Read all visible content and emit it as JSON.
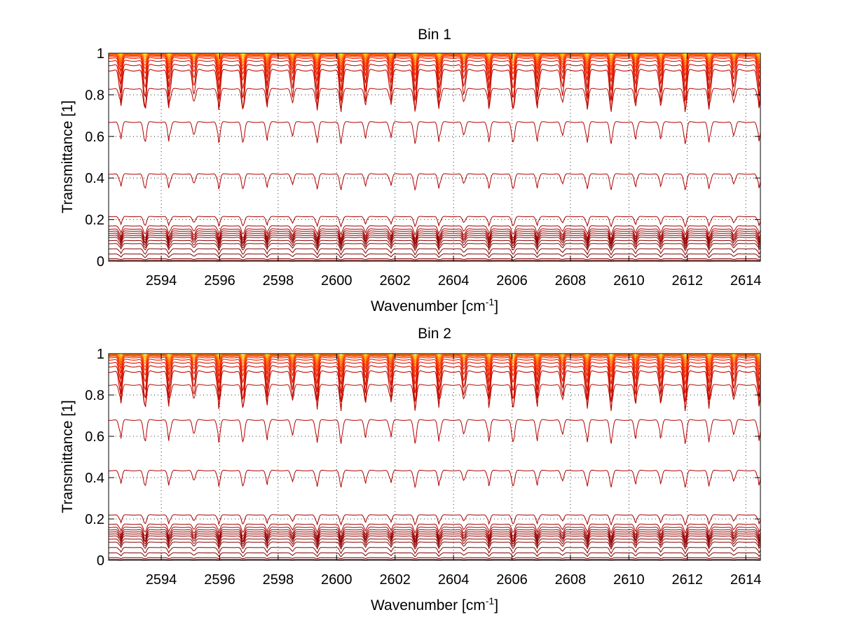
{
  "chart_data": [
    {
      "type": "line",
      "title": "Bin 1",
      "xlabel_main": "Wavenumber [cm",
      "xlabel_sup": "-1",
      "xlabel_end": "]",
      "ylabel": "Transmittance [1]",
      "xlim": [
        2592.2,
        2614.5
      ],
      "ylim": [
        0,
        1
      ],
      "xticks": [
        2594,
        2596,
        2598,
        2600,
        2602,
        2604,
        2606,
        2608,
        2610,
        2612,
        2614
      ],
      "yticks": [
        0,
        0.2,
        0.4,
        0.6,
        0.8,
        1
      ],
      "grid": true,
      "line_spacing_cm-1": 0.84,
      "series": [
        {
          "base": 1.0,
          "depth": 0.008,
          "color": "#ffe000"
        },
        {
          "base": 1.0,
          "depth": 0.012,
          "color": "#ffcc00"
        },
        {
          "base": 1.0,
          "depth": 0.018,
          "color": "#ffb400"
        },
        {
          "base": 0.998,
          "depth": 0.025,
          "color": "#ff9c00"
        },
        {
          "base": 0.997,
          "depth": 0.035,
          "color": "#ff8400"
        },
        {
          "base": 0.995,
          "depth": 0.045,
          "color": "#ff6c00"
        },
        {
          "base": 0.993,
          "depth": 0.06,
          "color": "#ff5400"
        },
        {
          "base": 0.99,
          "depth": 0.075,
          "color": "#ff3c00"
        },
        {
          "base": 0.985,
          "depth": 0.095,
          "color": "#f52a00"
        },
        {
          "base": 0.978,
          "depth": 0.12,
          "color": "#e82000"
        },
        {
          "base": 0.965,
          "depth": 0.15,
          "color": "#dc1800"
        },
        {
          "base": 0.945,
          "depth": 0.18,
          "color": "#d01000"
        },
        {
          "base": 0.92,
          "depth": 0.21,
          "color": "#c40c00"
        },
        {
          "base": 0.83,
          "depth": 0.11,
          "color": "#b80800"
        },
        {
          "base": 0.67,
          "depth": 0.11,
          "color": "#b40000"
        },
        {
          "base": 0.42,
          "depth": 0.08,
          "color": "#b00000"
        },
        {
          "base": 0.215,
          "depth": 0.05,
          "color": "#a80000"
        },
        {
          "base": 0.17,
          "depth": 0.045,
          "color": "#a40000"
        },
        {
          "base": 0.155,
          "depth": 0.05,
          "color": "#a00000"
        },
        {
          "base": 0.145,
          "depth": 0.05,
          "color": "#9c0000"
        },
        {
          "base": 0.135,
          "depth": 0.05,
          "color": "#980000"
        },
        {
          "base": 0.125,
          "depth": 0.045,
          "color": "#940000"
        },
        {
          "base": 0.115,
          "depth": 0.045,
          "color": "#900000"
        },
        {
          "base": 0.1,
          "depth": 0.04,
          "color": "#8c0000"
        },
        {
          "base": 0.085,
          "depth": 0.035,
          "color": "#880000"
        },
        {
          "base": 0.06,
          "depth": 0.03,
          "color": "#840000"
        },
        {
          "base": 0.035,
          "depth": 0.02,
          "color": "#800000"
        },
        {
          "base": 0.012,
          "depth": 0.006,
          "color": "#7c0000"
        },
        {
          "base": 0.004,
          "depth": 0.002,
          "color": "#780000"
        }
      ]
    },
    {
      "type": "line",
      "title": "Bin 2",
      "xlabel_main": "Wavenumber [cm",
      "xlabel_sup": "-1",
      "xlabel_end": "]",
      "ylabel": "Transmittance [1]",
      "xlim": [
        2592.2,
        2614.5
      ],
      "ylim": [
        0,
        1
      ],
      "xticks": [
        2594,
        2596,
        2598,
        2600,
        2602,
        2604,
        2606,
        2608,
        2610,
        2612,
        2614
      ],
      "yticks": [
        0,
        0.2,
        0.4,
        0.6,
        0.8,
        1
      ],
      "grid": true,
      "line_spacing_cm-1": 0.84,
      "series": [
        {
          "base": 1.0,
          "depth": 0.01,
          "color": "#ffe000"
        },
        {
          "base": 1.0,
          "depth": 0.014,
          "color": "#ffcc00"
        },
        {
          "base": 1.0,
          "depth": 0.02,
          "color": "#ffb400"
        },
        {
          "base": 0.998,
          "depth": 0.028,
          "color": "#ff9c00"
        },
        {
          "base": 0.997,
          "depth": 0.038,
          "color": "#ff8400"
        },
        {
          "base": 0.995,
          "depth": 0.05,
          "color": "#ff6c00"
        },
        {
          "base": 0.992,
          "depth": 0.065,
          "color": "#ff5400"
        },
        {
          "base": 0.988,
          "depth": 0.08,
          "color": "#ff3c00"
        },
        {
          "base": 0.982,
          "depth": 0.1,
          "color": "#f52a00"
        },
        {
          "base": 0.972,
          "depth": 0.125,
          "color": "#e82000"
        },
        {
          "base": 0.958,
          "depth": 0.155,
          "color": "#dc1800"
        },
        {
          "base": 0.94,
          "depth": 0.18,
          "color": "#d01000"
        },
        {
          "base": 0.915,
          "depth": 0.2,
          "color": "#c40c00"
        },
        {
          "base": 0.85,
          "depth": 0.12,
          "color": "#b80800"
        },
        {
          "base": 0.68,
          "depth": 0.12,
          "color": "#b40000"
        },
        {
          "base": 0.435,
          "depth": 0.085,
          "color": "#b00000"
        },
        {
          "base": 0.22,
          "depth": 0.05,
          "color": "#a80000"
        },
        {
          "base": 0.175,
          "depth": 0.045,
          "color": "#a40000"
        },
        {
          "base": 0.16,
          "depth": 0.05,
          "color": "#a00000"
        },
        {
          "base": 0.148,
          "depth": 0.05,
          "color": "#9c0000"
        },
        {
          "base": 0.138,
          "depth": 0.05,
          "color": "#980000"
        },
        {
          "base": 0.128,
          "depth": 0.045,
          "color": "#940000"
        },
        {
          "base": 0.118,
          "depth": 0.045,
          "color": "#900000"
        },
        {
          "base": 0.103,
          "depth": 0.04,
          "color": "#8c0000"
        },
        {
          "base": 0.088,
          "depth": 0.035,
          "color": "#880000"
        },
        {
          "base": 0.062,
          "depth": 0.03,
          "color": "#840000"
        },
        {
          "base": 0.036,
          "depth": 0.02,
          "color": "#800000"
        },
        {
          "base": 0.013,
          "depth": 0.006,
          "color": "#7c0000"
        },
        {
          "base": 0.004,
          "depth": 0.002,
          "color": "#780000"
        }
      ]
    }
  ]
}
